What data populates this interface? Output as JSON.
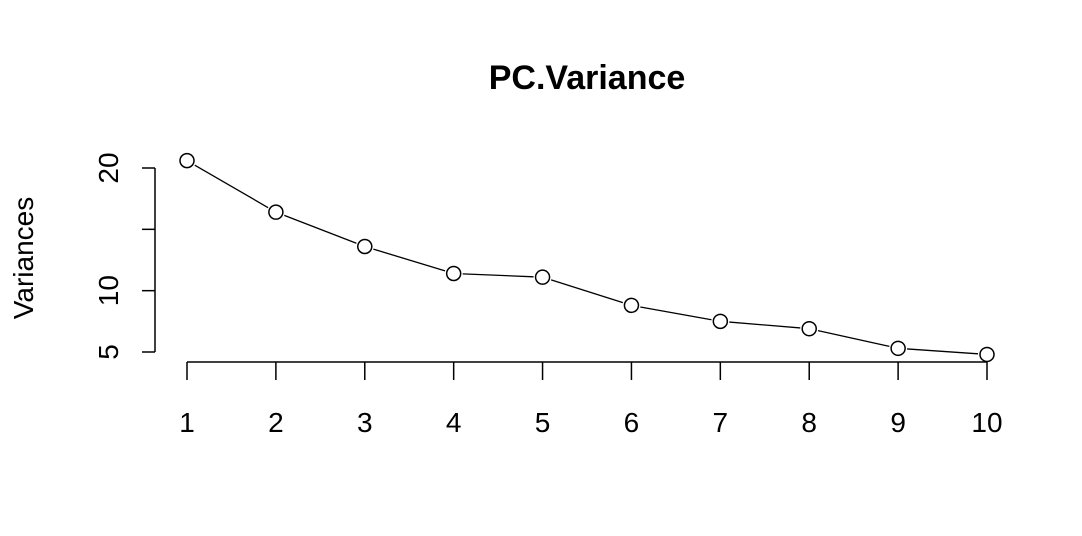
{
  "chart_data": {
    "type": "line",
    "title": "PC.Variance",
    "xlabel": "",
    "ylabel": "Variances",
    "x": [
      1,
      2,
      3,
      4,
      5,
      6,
      7,
      8,
      9,
      10
    ],
    "x_tick_labels": [
      "1",
      "2",
      "3",
      "4",
      "5",
      "6",
      "7",
      "8",
      "9",
      "10"
    ],
    "y_ticks": [
      5,
      10,
      15,
      20
    ],
    "y_tick_labels": [
      "5",
      "10",
      "",
      "20"
    ],
    "ylim": [
      5,
      20
    ],
    "grid": false,
    "series": [
      {
        "values": [
          20.6,
          16.4,
          13.6,
          11.4,
          11.1,
          8.8,
          7.5,
          6.9,
          5.3,
          4.8
        ],
        "marker": "open-circle",
        "color": "#000000"
      }
    ]
  }
}
